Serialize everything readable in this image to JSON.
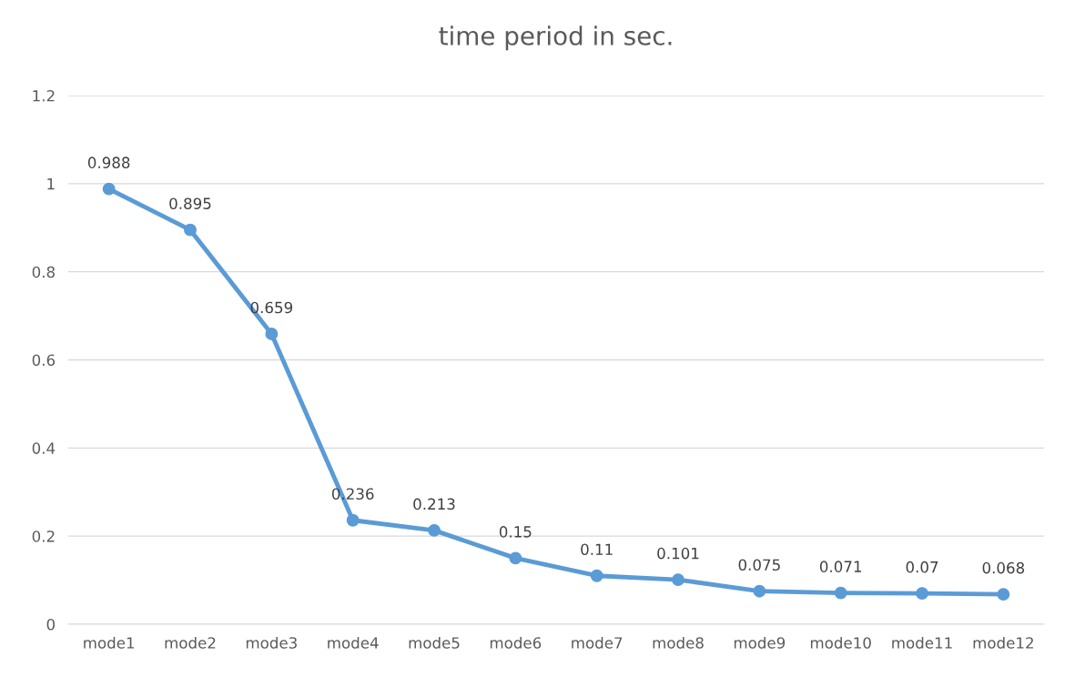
{
  "chart_data": {
    "type": "line",
    "title": "time period in sec.",
    "categories": [
      "mode1",
      "mode2",
      "mode3",
      "mode4",
      "mode5",
      "mode6",
      "mode7",
      "mode8",
      "mode9",
      "mode10",
      "mode11",
      "mode12"
    ],
    "series": [
      {
        "color": "#5b9bd5",
        "values": [
          0.988,
          0.895,
          0.659,
          0.236,
          0.213,
          0.15,
          0.11,
          0.101,
          0.075,
          0.071,
          0.07,
          0.068
        ]
      }
    ],
    "ylim": [
      0,
      1.2
    ],
    "yticks": [
      0,
      0.2,
      0.4,
      0.6,
      0.8,
      1,
      1.2
    ],
    "grid": "y",
    "marker": "circle",
    "line_style": "solid",
    "data_labels": true
  }
}
